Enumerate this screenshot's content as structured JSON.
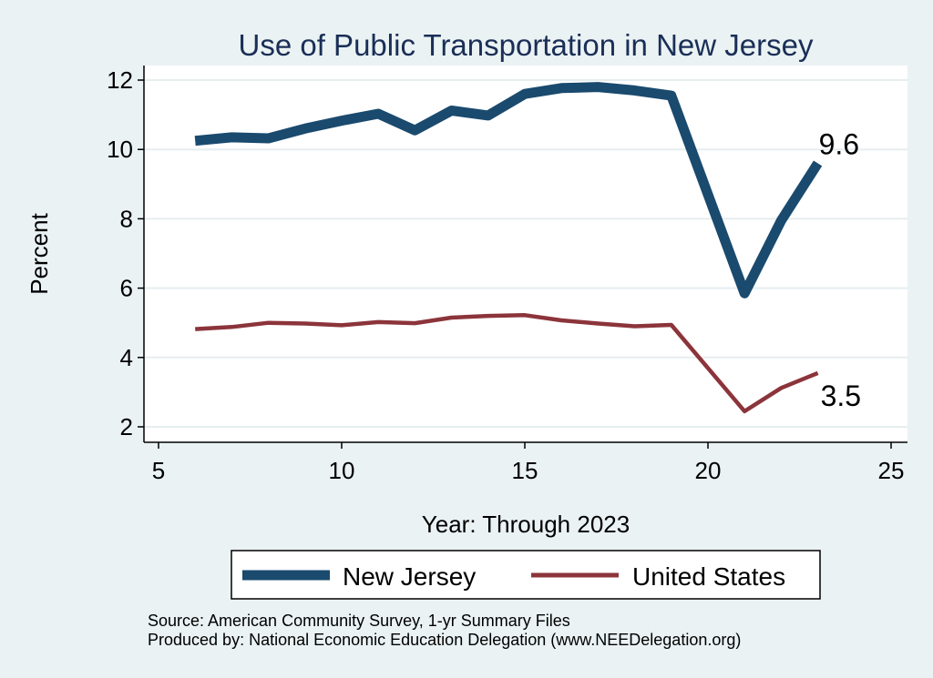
{
  "chart_data": {
    "type": "line",
    "title": "Use of Public Transportation in New Jersey",
    "xlabel": "Year: Through 2023",
    "ylabel": "Percent",
    "xlim": [
      5,
      25
    ],
    "ylim": [
      1.5,
      12.5
    ],
    "xticks": [
      5,
      10,
      15,
      20,
      25
    ],
    "yticks": [
      2,
      4,
      6,
      8,
      10,
      12
    ],
    "x": [
      6,
      7,
      8,
      9,
      10,
      11,
      12,
      13,
      14,
      15,
      16,
      17,
      18,
      19,
      21,
      22,
      23
    ],
    "series": [
      {
        "name": "New Jersey",
        "color": "#1a4a6e",
        "values": [
          10.25,
          10.35,
          10.32,
          10.6,
          10.83,
          11.03,
          10.55,
          11.12,
          10.98,
          11.6,
          11.77,
          11.8,
          11.7,
          11.55,
          5.85,
          7.95,
          9.6
        ],
        "end_label": "9.6"
      },
      {
        "name": "United States",
        "color": "#8c343b",
        "values": [
          4.82,
          4.88,
          5.0,
          4.98,
          4.93,
          5.02,
          4.99,
          5.15,
          5.2,
          5.22,
          5.07,
          4.98,
          4.9,
          4.94,
          2.45,
          3.12,
          3.55
        ],
        "end_label": "3.5"
      }
    ],
    "grid": true,
    "legend_position": "bottom"
  },
  "notes": {
    "source": "Source: American Community Survey, 1-yr Summary Files",
    "produced_by": "Produced by: National Economic Education Delegation (www.NEEDelegation.org)"
  }
}
